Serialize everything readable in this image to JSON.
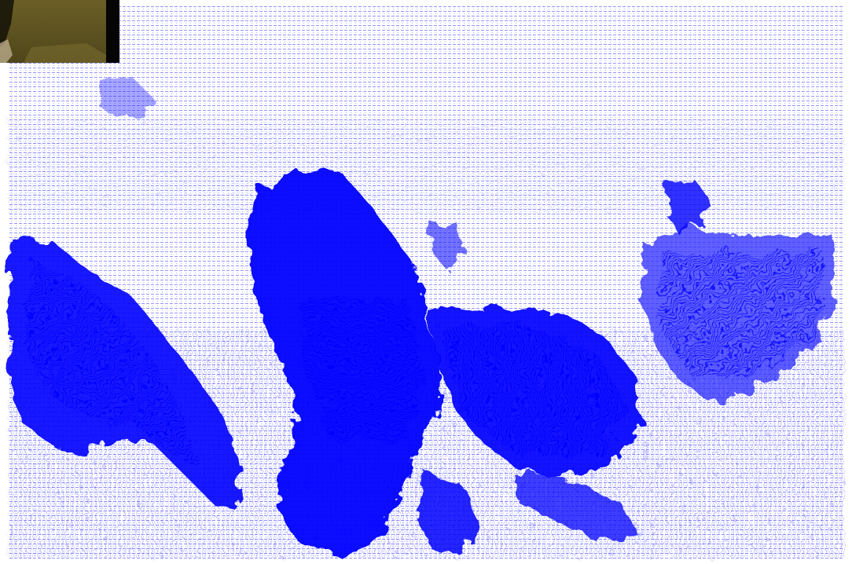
{
  "image": {
    "kind": "optical-flow-vector-field",
    "vector_color": "#0000ff",
    "background_color": "#ffffff",
    "dense_region_color": "#1a1aff",
    "inset": {
      "content": "source-video-frame-crop",
      "colors": {
        "ground": "#5f5420",
        "ground_light": "#7a6c30",
        "shadow": "#141208",
        "right_band": "#050505"
      }
    }
  }
}
